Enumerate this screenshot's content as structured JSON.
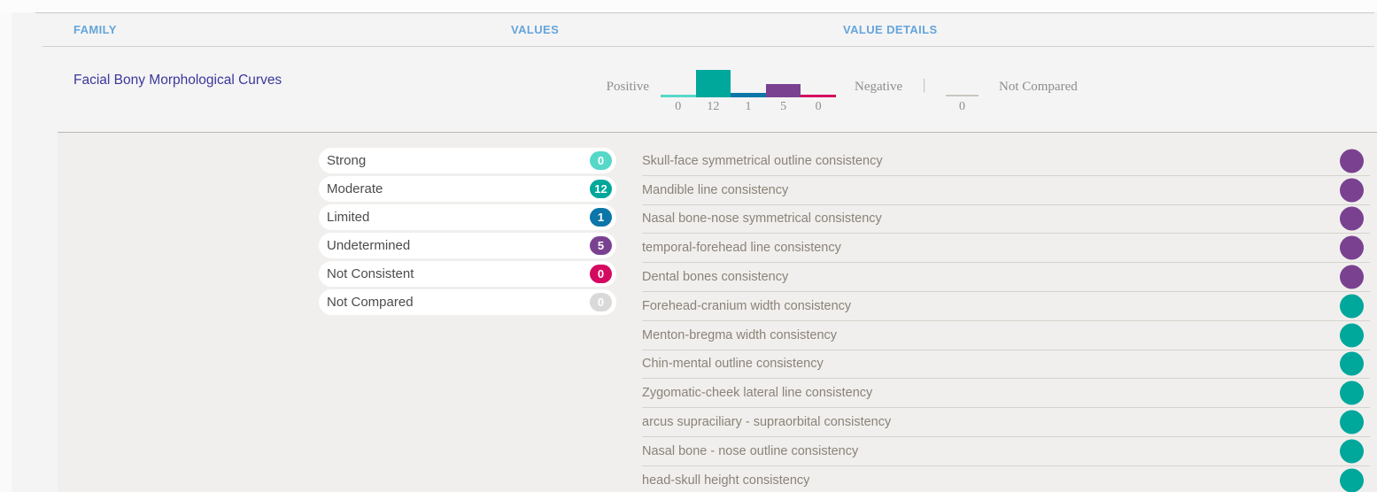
{
  "palette": {
    "strong": "#55d8c8",
    "moderate": "#00a79b",
    "limited": "#0c76a9",
    "undetermined": "#7a4191",
    "not_consistent": "#d40a60",
    "not_compared": "#d9d9d9"
  },
  "header": {
    "family": "FAMILY",
    "values": "VALUES",
    "value_details": "VALUE DETAILS",
    "accent_color": "#64a5db"
  },
  "family_row": {
    "name": "Facial Bony Morphological Curves",
    "chart": {
      "positive_label": "Positive",
      "negative_label": "Negative",
      "separator": "|",
      "not_compared_label": "Not Compared",
      "segments": [
        {
          "key": "strong",
          "value": 0
        },
        {
          "key": "moderate",
          "value": 12
        },
        {
          "key": "limited",
          "value": 1
        },
        {
          "key": "undetermined",
          "value": 5
        },
        {
          "key": "not_consistent",
          "value": 0
        }
      ],
      "not_compared_value": 0
    }
  },
  "values_summary": [
    {
      "label": "Strong",
      "key": "strong",
      "count": 0
    },
    {
      "label": "Moderate",
      "key": "moderate",
      "count": 12
    },
    {
      "label": "Limited",
      "key": "limited",
      "count": 1
    },
    {
      "label": "Undetermined",
      "key": "undetermined",
      "count": 5
    },
    {
      "label": "Not Consistent",
      "key": "not_consistent",
      "count": 0
    },
    {
      "label": "Not Compared",
      "key": "not_compared",
      "count": 0
    }
  ],
  "value_details": [
    {
      "label": "Skull-face symmetrical outline consistency",
      "status": "undetermined"
    },
    {
      "label": "Mandible line consistency",
      "status": "undetermined"
    },
    {
      "label": "Nasal bone-nose symmetrical consistency",
      "status": "undetermined"
    },
    {
      "label": "temporal-forehead line consistency",
      "status": "undetermined"
    },
    {
      "label": "Dental bones consistency",
      "status": "undetermined"
    },
    {
      "label": "Forehead-cranium width consistency",
      "status": "moderate"
    },
    {
      "label": "Menton-bregma width consistency",
      "status": "moderate"
    },
    {
      "label": "Chin-mental outline consistency",
      "status": "moderate"
    },
    {
      "label": "Zygomatic-cheek lateral line consistency",
      "status": "moderate"
    },
    {
      "label": "arcus supraciliary - supraorbital consistency",
      "status": "moderate"
    },
    {
      "label": "Nasal bone - nose outline consistency",
      "status": "moderate"
    },
    {
      "label": "head-skull height consistency",
      "status": "moderate"
    }
  ]
}
